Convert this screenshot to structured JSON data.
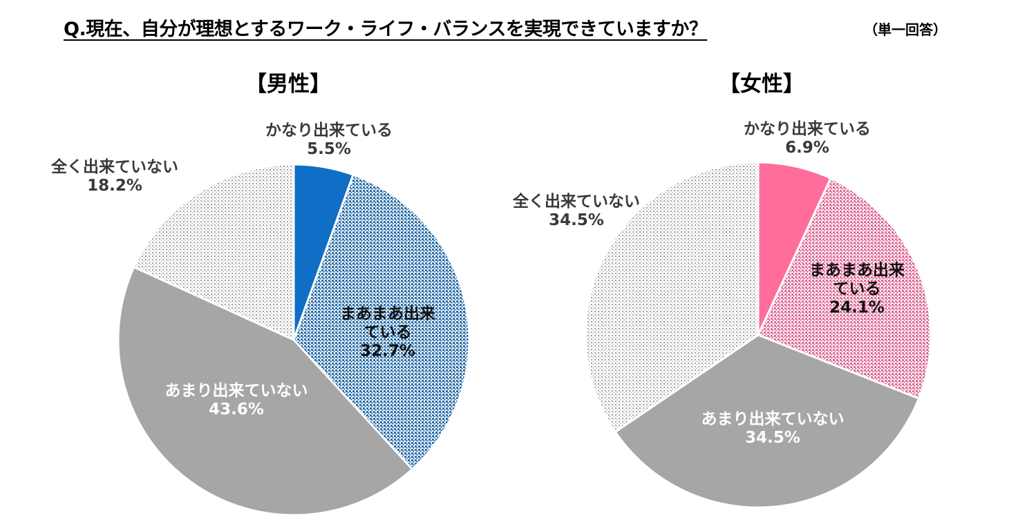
{
  "header": {
    "question": "Q.現在、自分が理想とするワーク・ライフ・バランスを実現できていますか？",
    "note": "（単一回答）"
  },
  "chart_data": [
    {
      "type": "pie",
      "title": "【男性】",
      "categories": [
        "かなり出来ている",
        "まあまあ出来ている",
        "あまり出来ていない",
        "全く出来ていない"
      ],
      "values": [
        5.5,
        32.7,
        43.6,
        18.2
      ],
      "unit": "%",
      "labels": [
        {
          "lines": [
            "かなり出来ている",
            "5.5%"
          ]
        },
        {
          "lines": [
            "まあまあ出来",
            "ている",
            "32.7%"
          ]
        },
        {
          "lines": [
            "あまり出来ていない",
            "43.6%"
          ]
        },
        {
          "lines": [
            "全く出来ていない",
            "18.2%"
          ]
        }
      ],
      "colors": [
        "#0f6fc6",
        "#2f78b4",
        "#a6a6a6",
        "#bfbfbf"
      ],
      "patterns": [
        "solid",
        "dots-blue",
        "solid",
        "dots-gray"
      ]
    },
    {
      "type": "pie",
      "title": "【女性】",
      "categories": [
        "かなり出来ている",
        "まあまあ出来ている",
        "あまり出来ていない",
        "全く出来ていない"
      ],
      "values": [
        6.9,
        24.1,
        34.5,
        34.5
      ],
      "unit": "%",
      "labels": [
        {
          "lines": [
            "かなり出来ている",
            "6.9%"
          ]
        },
        {
          "lines": [
            "まあまあ出来",
            "ている",
            "24.1%"
          ]
        },
        {
          "lines": [
            "あまり出来ていない",
            "34.5%"
          ]
        },
        {
          "lines": [
            "全く出来ていない",
            "34.5%"
          ]
        }
      ],
      "colors": [
        "#ff6d9b",
        "#e57aa4",
        "#a6a6a6",
        "#bfbfbf"
      ],
      "patterns": [
        "solid",
        "dots-pink",
        "solid",
        "dots-gray"
      ]
    }
  ]
}
